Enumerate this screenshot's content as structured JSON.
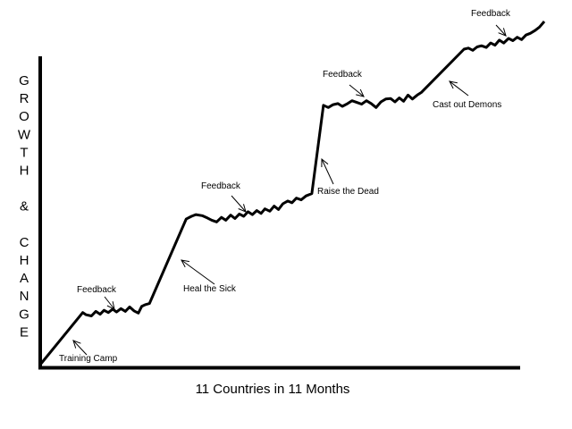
{
  "chart_data": {
    "type": "line",
    "title": "",
    "xlabel": "11 Countries in 11 Months",
    "ylabel": "GROWTH & CHANGE",
    "ylabel_letters": [
      "G",
      "R",
      "O",
      "W",
      "T",
      "H",
      "",
      "&",
      "",
      "C",
      "H",
      "A",
      "N",
      "G",
      "E"
    ],
    "grid": false,
    "legend": "none",
    "series": [
      {
        "values": [
          [
            0,
            0
          ],
          [
            8.8,
            9.2
          ],
          [
            9.5,
            8.8
          ],
          [
            10.6,
            8.6
          ],
          [
            11.5,
            9.4
          ],
          [
            12.4,
            8.9
          ],
          [
            13.2,
            9.6
          ],
          [
            14.1,
            9.2
          ],
          [
            15.0,
            9.8
          ],
          [
            15.8,
            9.3
          ],
          [
            16.7,
            9.9
          ],
          [
            17.6,
            9.4
          ],
          [
            18.5,
            10.2
          ],
          [
            19.4,
            9.5
          ],
          [
            20.3,
            9.1
          ],
          [
            21.0,
            10.3
          ],
          [
            21.8,
            10.6
          ],
          [
            22.6,
            10.8
          ],
          [
            30.2,
            25.7
          ],
          [
            31.3,
            26.2
          ],
          [
            32.2,
            26.5
          ],
          [
            33.5,
            26.3
          ],
          [
            34.6,
            25.9
          ],
          [
            35.5,
            25.5
          ],
          [
            36.5,
            25.2
          ],
          [
            37.5,
            26.0
          ],
          [
            38.4,
            25.5
          ],
          [
            39.4,
            26.4
          ],
          [
            40.3,
            25.8
          ],
          [
            41.2,
            26.6
          ],
          [
            42.1,
            26.2
          ],
          [
            43.0,
            27.0
          ],
          [
            43.9,
            26.5
          ],
          [
            44.8,
            27.2
          ],
          [
            45.7,
            26.7
          ],
          [
            46.5,
            27.5
          ],
          [
            47.5,
            27.1
          ],
          [
            48.4,
            28.0
          ],
          [
            49.3,
            27.4
          ],
          [
            50.2,
            28.4
          ],
          [
            51.2,
            28.9
          ],
          [
            52.1,
            28.6
          ],
          [
            53.0,
            29.4
          ],
          [
            54.0,
            29.1
          ],
          [
            55.0,
            29.8
          ],
          [
            56.2,
            30.2
          ],
          [
            58.6,
            45.8
          ],
          [
            59.6,
            45.4
          ],
          [
            60.6,
            45.9
          ],
          [
            61.6,
            46.1
          ],
          [
            62.5,
            45.6
          ],
          [
            63.6,
            46.1
          ],
          [
            64.5,
            46.6
          ],
          [
            65.5,
            46.3
          ],
          [
            66.5,
            46.0
          ],
          [
            67.5,
            46.6
          ],
          [
            68.5,
            46.1
          ],
          [
            69.5,
            45.4
          ],
          [
            70.5,
            46.4
          ],
          [
            71.5,
            46.9
          ],
          [
            72.5,
            47.0
          ],
          [
            73.4,
            46.4
          ],
          [
            74.3,
            47.1
          ],
          [
            75.2,
            46.5
          ],
          [
            76.1,
            47.6
          ],
          [
            77.0,
            46.9
          ],
          [
            78.0,
            47.6
          ],
          [
            78.9,
            48.1
          ],
          [
            87.7,
            55.7
          ],
          [
            88.6,
            55.9
          ],
          [
            89.5,
            55.5
          ],
          [
            90.4,
            56.1
          ],
          [
            91.3,
            56.3
          ],
          [
            92.3,
            56.0
          ],
          [
            93.2,
            56.8
          ],
          [
            94.1,
            56.4
          ],
          [
            95.0,
            57.3
          ],
          [
            95.9,
            56.8
          ],
          [
            96.9,
            57.6
          ],
          [
            97.8,
            57.2
          ],
          [
            98.7,
            57.8
          ],
          [
            99.6,
            57.4
          ],
          [
            100.5,
            58.2
          ],
          [
            101.4,
            58.5
          ],
          [
            102.4,
            59.0
          ],
          [
            103.3,
            59.6
          ],
          [
            104.3,
            60.6
          ]
        ]
      }
    ],
    "annotations": [
      {
        "text": "Training Camp"
      },
      {
        "text": "Feedback"
      },
      {
        "text": "Heal the Sick"
      },
      {
        "text": "Feedback"
      },
      {
        "text": "Raise the Dead"
      },
      {
        "text": "Feedback"
      },
      {
        "text": "Cast out Demons"
      },
      {
        "text": "Feedback"
      }
    ]
  }
}
